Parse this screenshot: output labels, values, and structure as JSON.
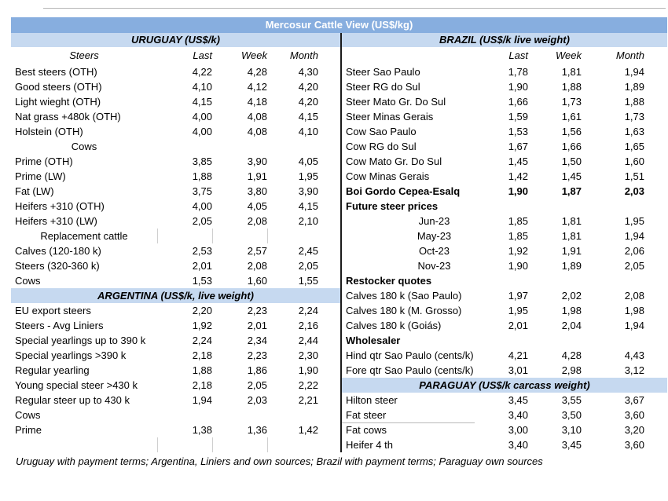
{
  "title": "Mercosur Cattle View (US$/kg)",
  "columns": [
    "Last",
    "Week",
    "Month"
  ],
  "footer": "Uruguay with payment terms; Argentina, Liniers and own sources; Brazil with payment terms; Paraguay own sources",
  "colors": {
    "title_bar": "#87AEDF",
    "section_bar": "#C6D9F0",
    "title_text": "#FFFFFF",
    "body_text": "#000000",
    "divider": "#1B1B1B"
  },
  "left": {
    "section": "URUGUAY (US$/k)",
    "col_group_label": "Steers",
    "rows": [
      {
        "t": "data",
        "label": "Best steers (OTH)",
        "v": [
          "4,22",
          "4,28",
          "4,30"
        ]
      },
      {
        "t": "data",
        "label": "Good steers (OTH)",
        "v": [
          "4,10",
          "4,12",
          "4,20"
        ]
      },
      {
        "t": "data",
        "label": "Light wieght (OTH)",
        "v": [
          "4,15",
          "4,18",
          "4,20"
        ]
      },
      {
        "t": "data",
        "label": "Nat grass +480k (OTH)",
        "v": [
          "4,00",
          "4,08",
          "4,15"
        ]
      },
      {
        "t": "data",
        "label": "Holstein (OTH)",
        "v": [
          "4,00",
          "4,08",
          "4,10"
        ]
      },
      {
        "t": "subhead",
        "label": "Cows",
        "v": [
          "",
          "",
          ""
        ]
      },
      {
        "t": "data",
        "label": "Prime (OTH)",
        "v": [
          "3,85",
          "3,90",
          "4,05"
        ]
      },
      {
        "t": "data",
        "label": "Prime (LW)",
        "v": [
          "1,88",
          "1,91",
          "1,95"
        ]
      },
      {
        "t": "data",
        "label": "Fat (LW)",
        "v": [
          "3,75",
          "3,80",
          "3,90"
        ]
      },
      {
        "t": "data",
        "label": "Heifers +310 (OTH)",
        "v": [
          "4,00",
          "4,05",
          "4,15"
        ]
      },
      {
        "t": "data",
        "label": "Heifers +310 (LW)",
        "v": [
          "2,05",
          "2,08",
          "2,10"
        ]
      },
      {
        "t": "subhead",
        "label": "Replacement cattle",
        "v": [
          "",
          "",
          ""
        ],
        "ticks": true
      },
      {
        "t": "data",
        "label": "Calves (120-180 k)",
        "v": [
          "2,53",
          "2,57",
          "2,45"
        ]
      },
      {
        "t": "data",
        "label": "Steers (320-360 k)",
        "v": [
          "2,01",
          "2,08",
          "2,05"
        ]
      },
      {
        "t": "data",
        "label": "Cows",
        "v": [
          "1,53",
          "1,60",
          "1,55"
        ]
      },
      {
        "t": "section",
        "label": "ARGENTINA (US$/k, live weight)"
      },
      {
        "t": "data",
        "label": "EU export steers",
        "v": [
          "2,20",
          "2,23",
          "2,24"
        ]
      },
      {
        "t": "data",
        "label": "Steers - Avg Liniers",
        "v": [
          "1,92",
          "2,01",
          "2,16"
        ]
      },
      {
        "t": "data",
        "label": "Special yearlings up to 390 k",
        "v": [
          "2,24",
          "2,34",
          "2,44"
        ]
      },
      {
        "t": "data",
        "label": "Special yearlings >390 k",
        "v": [
          "2,18",
          "2,23",
          "2,30"
        ]
      },
      {
        "t": "data",
        "label": "Regular yearling",
        "v": [
          "1,88",
          "1,86",
          "1,90"
        ]
      },
      {
        "t": "data",
        "label": "Young special steer >430 k",
        "v": [
          "2,18",
          "2,05",
          "2,22"
        ]
      },
      {
        "t": "data",
        "label": "Regular steer up to 430 k",
        "v": [
          "1,94",
          "2,03",
          "2,21"
        ]
      },
      {
        "t": "data",
        "label": "Cows",
        "v": [
          "",
          "",
          ""
        ]
      },
      {
        "t": "data",
        "label": "Prime",
        "v": [
          "1,38",
          "1,36",
          "1,42"
        ]
      },
      {
        "t": "blank",
        "label": "",
        "v": [
          "",
          "",
          ""
        ],
        "ticks": true
      }
    ]
  },
  "right": {
    "section": "BRAZIL  (US$/k live weight)",
    "col_group_label": "",
    "rows": [
      {
        "t": "data",
        "label": "Steer Sao Paulo",
        "v": [
          "1,78",
          "1,81",
          "1,94"
        ]
      },
      {
        "t": "data",
        "label": "Steer RG do Sul",
        "v": [
          "1,90",
          "1,88",
          "1,89"
        ]
      },
      {
        "t": "data",
        "label": "Steer Mato Gr. Do Sul",
        "v": [
          "1,66",
          "1,73",
          "1,88"
        ]
      },
      {
        "t": "data",
        "label": "Steer Minas Gerais",
        "v": [
          "1,59",
          "1,61",
          "1,73"
        ]
      },
      {
        "t": "data",
        "label": "Cow Sao Paulo",
        "v": [
          "1,53",
          "1,56",
          "1,63"
        ]
      },
      {
        "t": "data",
        "label": "Cow RG do Sul",
        "v": [
          "1,67",
          "1,66",
          "1,65"
        ]
      },
      {
        "t": "data",
        "label": "Cow Mato Gr. Do Sul",
        "v": [
          "1,45",
          "1,50",
          "1,60"
        ]
      },
      {
        "t": "data",
        "label": "Cow Minas Gerais",
        "v": [
          "1,42",
          "1,45",
          "1,51"
        ]
      },
      {
        "t": "data",
        "label": "Boi Gordo Cepea-Esalq",
        "v": [
          "1,90",
          "1,87",
          "2,03"
        ],
        "bold": true
      },
      {
        "t": "group",
        "label": "Future steer prices",
        "v": [
          "",
          "",
          ""
        ]
      },
      {
        "t": "center",
        "label": "Jun-23",
        "v": [
          "1,85",
          "1,81",
          "1,95"
        ]
      },
      {
        "t": "center",
        "label": "May-23",
        "v": [
          "1,85",
          "1,81",
          "1,94"
        ]
      },
      {
        "t": "center",
        "label": "Oct-23",
        "v": [
          "1,92",
          "1,91",
          "2,06"
        ]
      },
      {
        "t": "center",
        "label": "Nov-23",
        "v": [
          "1,90",
          "1,89",
          "2,05"
        ]
      },
      {
        "t": "group",
        "label": "Restocker quotes",
        "v": [
          "",
          "",
          ""
        ]
      },
      {
        "t": "data",
        "label": "Calves 180 k (Sao Paulo)",
        "v": [
          "1,97",
          "2,02",
          "2,08"
        ]
      },
      {
        "t": "data",
        "label": "Calves 180 k (M. Grosso)",
        "v": [
          "1,95",
          "1,98",
          "1,98"
        ]
      },
      {
        "t": "data",
        "label": "Calves 180 k (Goiás)",
        "v": [
          "2,01",
          "2,04",
          "1,94"
        ]
      },
      {
        "t": "group",
        "label": "Wholesaler",
        "v": [
          "",
          "",
          ""
        ]
      },
      {
        "t": "data",
        "label": "Hind qtr Sao Paulo (cents/k)",
        "v": [
          "4,21",
          "4,28",
          "4,43"
        ]
      },
      {
        "t": "data",
        "label": "Fore qtr Sao Paulo (cents/k)",
        "v": [
          "3,01",
          "2,98",
          "3,12"
        ]
      },
      {
        "t": "section",
        "label": "PARAGUAY  (US$/k carcass weight)"
      },
      {
        "t": "data",
        "label": "Hilton steer",
        "v": [
          "3,45",
          "3,55",
          "3,67"
        ]
      },
      {
        "t": "data",
        "label": "Fat steer",
        "v": [
          "3,40",
          "3,50",
          "3,60"
        ],
        "underline": true
      },
      {
        "t": "data",
        "label": "Fat cows",
        "v": [
          "3,00",
          "3,10",
          "3,20"
        ]
      },
      {
        "t": "data",
        "label": "Heifer 4 th",
        "v": [
          "3,40",
          "3,45",
          "3,60"
        ]
      }
    ]
  }
}
